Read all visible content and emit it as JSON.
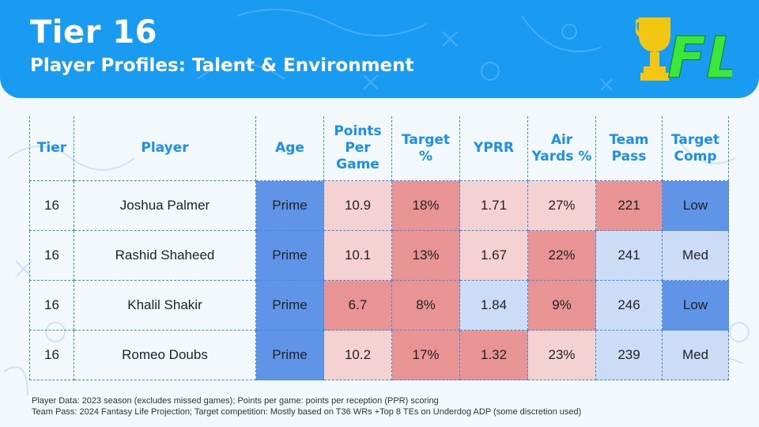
{
  "header": {
    "title": "Tier 16",
    "subtitle": "Player Profiles: Talent & Environment",
    "logo_text": "FL"
  },
  "colors": {
    "header_blue": "#1a9bf2",
    "header_text_blue": "#1a8ff0",
    "logo_gold": "#f3c614",
    "logo_green": "#39e83a",
    "cool_dark": "#5f94e6",
    "cool_light": "#cddcf6",
    "warm_dark": "#e89494",
    "warm_mid": "#ecacac",
    "warm_light": "#f5d2d2"
  },
  "table": {
    "headers": {
      "tier": "Tier",
      "player": "Player",
      "age": "Age",
      "ppg_1": "Points",
      "ppg_2": "Per",
      "ppg_3": "Game",
      "target_1": "Target",
      "target_2": "%",
      "yprr": "YPRR",
      "air_1": "Air",
      "air_2": "Yards %",
      "pass_1": "Team",
      "pass_2": "Pass",
      "comp_1": "Target",
      "comp_2": "Comp"
    },
    "rows": [
      {
        "tier": "16",
        "player": "Joshua Palmer",
        "age": "Prime",
        "ppg": "10.9",
        "target_pct": "18%",
        "yprr": "1.71",
        "air_yards_pct": "27%",
        "team_pass": "221",
        "target_comp": "Low"
      },
      {
        "tier": "16",
        "player": "Rashid Shaheed",
        "age": "Prime",
        "ppg": "10.1",
        "target_pct": "13%",
        "yprr": "1.67",
        "air_yards_pct": "22%",
        "team_pass": "241",
        "target_comp": "Med"
      },
      {
        "tier": "16",
        "player": "Khalil Shakir",
        "age": "Prime",
        "ppg": "6.7",
        "target_pct": "8%",
        "yprr": "1.84",
        "air_yards_pct": "9%",
        "team_pass": "246",
        "target_comp": "Low"
      },
      {
        "tier": "16",
        "player": "Romeo Doubs",
        "age": "Prime",
        "ppg": "10.2",
        "target_pct": "17%",
        "yprr": "1.32",
        "air_yards_pct": "23%",
        "team_pass": "239",
        "target_comp": "Med"
      }
    ]
  },
  "footnotes": {
    "line1": "Player Data: 2023 season (excludes missed games); Points per game: points per reception (PPR) scoring",
    "line2": "Team Pass: 2024 Fantasy Life Projection; Target competition: Mostly based on T36 WRs +Top 8 TEs on Underdog ADP (some discretion used)"
  }
}
